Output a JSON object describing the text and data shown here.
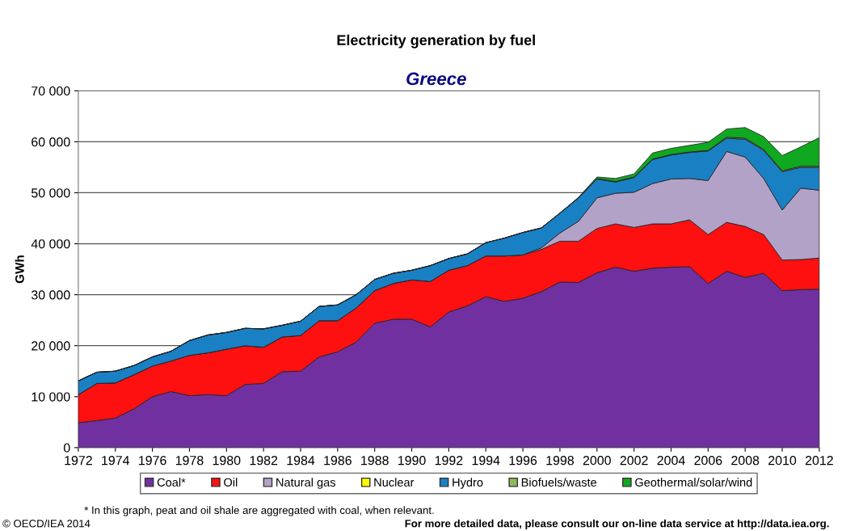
{
  "chart_data": {
    "type": "area",
    "stacked": true,
    "title": "Electricity generation by fuel",
    "subtitle": "Greece",
    "ylabel": "GWh",
    "x": [
      1972,
      1973,
      1974,
      1975,
      1976,
      1977,
      1978,
      1979,
      1980,
      1981,
      1982,
      1983,
      1984,
      1985,
      1986,
      1987,
      1988,
      1989,
      1990,
      1991,
      1992,
      1993,
      1994,
      1995,
      1996,
      1997,
      1998,
      1999,
      2000,
      2001,
      2002,
      2003,
      2004,
      2005,
      2006,
      2007,
      2008,
      2009,
      2010,
      2011,
      2012
    ],
    "series": [
      {
        "name": "Coal*",
        "color": "#7030a0",
        "values": [
          4900,
          5300,
          5800,
          7600,
          10000,
          11000,
          10200,
          10400,
          10200,
          12400,
          12600,
          14900,
          15000,
          17800,
          18800,
          20700,
          24400,
          25200,
          25200,
          23700,
          26600,
          27800,
          29600,
          28700,
          29300,
          30600,
          32500,
          32400,
          34300,
          35400,
          34600,
          35200,
          35400,
          35500,
          32200,
          34600,
          33400,
          34200,
          30800,
          31000,
          31100
        ]
      },
      {
        "name": "Oil",
        "color": "#ff1010",
        "values": [
          5500,
          7300,
          6900,
          6700,
          6000,
          6000,
          7900,
          8200,
          9100,
          7600,
          7100,
          6800,
          7000,
          7100,
          6100,
          6700,
          6400,
          7000,
          7700,
          8900,
          8200,
          7900,
          8000,
          8900,
          8500,
          8300,
          8000,
          8100,
          8700,
          8500,
          8600,
          8700,
          8500,
          9200,
          9600,
          9600,
          10000,
          7600,
          6000,
          5900,
          6100
        ]
      },
      {
        "name": "Natural gas",
        "color": "#b3a2c7",
        "values": [
          0,
          0,
          0,
          0,
          0,
          0,
          0,
          0,
          0,
          0,
          0,
          0,
          0,
          0,
          0,
          0,
          0,
          0,
          0,
          0,
          0,
          0,
          0,
          0,
          0,
          300,
          1600,
          3900,
          6000,
          6000,
          6900,
          7900,
          8800,
          8100,
          10600,
          13900,
          13600,
          11000,
          9800,
          14000,
          13300
        ]
      },
      {
        "name": "Nuclear",
        "color": "#ffff00",
        "values": [
          null,
          null,
          null,
          null,
          null,
          null,
          null,
          null,
          null,
          null,
          null,
          null,
          null,
          null,
          null,
          null,
          null,
          null,
          null,
          null,
          null,
          null,
          null,
          null,
          null,
          null,
          null,
          null,
          null,
          null,
          null,
          null,
          null,
          null,
          null,
          null,
          null,
          null,
          null,
          null,
          null
        ]
      },
      {
        "name": "Hydro",
        "color": "#1a80c4",
        "values": [
          2700,
          2200,
          2300,
          1800,
          1800,
          1900,
          2900,
          3500,
          3300,
          3400,
          3600,
          2300,
          2800,
          2800,
          3100,
          2600,
          2200,
          2000,
          1900,
          3100,
          2300,
          2300,
          2600,
          3500,
          4400,
          3900,
          3900,
          4600,
          3700,
          2200,
          2900,
          4700,
          4700,
          5100,
          5800,
          2600,
          3500,
          5500,
          7500,
          4100,
          4500
        ]
      },
      {
        "name": "Biofuels/waste",
        "color": "#8fbc5a",
        "values": [
          0,
          0,
          0,
          0,
          0,
          0,
          0,
          0,
          0,
          0,
          0,
          0,
          0,
          0,
          0,
          0,
          0,
          0,
          0,
          0,
          0,
          0,
          0,
          0,
          0,
          0,
          0,
          0,
          100,
          100,
          100,
          100,
          100,
          100,
          100,
          200,
          200,
          200,
          200,
          200,
          200
        ]
      },
      {
        "name": "Geothermal/solar/wind",
        "color": "#10a820",
        "values": [
          0,
          0,
          0,
          0,
          0,
          0,
          0,
          0,
          0,
          0,
          0,
          0,
          0,
          0,
          0,
          0,
          0,
          0,
          0,
          0,
          0,
          0,
          0,
          0,
          0,
          0,
          0,
          100,
          300,
          600,
          600,
          1200,
          1200,
          1300,
          1600,
          1600,
          2100,
          2500,
          3000,
          3800,
          5600
        ]
      }
    ],
    "xlim": [
      1972,
      2012
    ],
    "xticks": [
      1972,
      1974,
      1976,
      1978,
      1980,
      1982,
      1984,
      1986,
      1988,
      1990,
      1992,
      1994,
      1996,
      1998,
      2000,
      2002,
      2004,
      2006,
      2008,
      2010,
      2012
    ],
    "ylim": [
      0,
      70000
    ],
    "yticks": [
      {
        "value": 0,
        "label": "0"
      },
      {
        "value": 10000,
        "label": "10 000"
      },
      {
        "value": 20000,
        "label": "20 000"
      },
      {
        "value": 30000,
        "label": "30 000"
      },
      {
        "value": 40000,
        "label": "40 000"
      },
      {
        "value": 50000,
        "label": "50 000"
      },
      {
        "value": 60000,
        "label": "60 000"
      },
      {
        "value": 70000,
        "label": "70 000"
      }
    ],
    "grid": "y",
    "legend": "bottom",
    "annotations": [
      "* In this graph, peat and oil shale are aggregated with coal, when relevant.",
      "© OECD/IEA 2014",
      "For more detailed data, please consult our on-line data service at http://data.iea.org."
    ]
  }
}
